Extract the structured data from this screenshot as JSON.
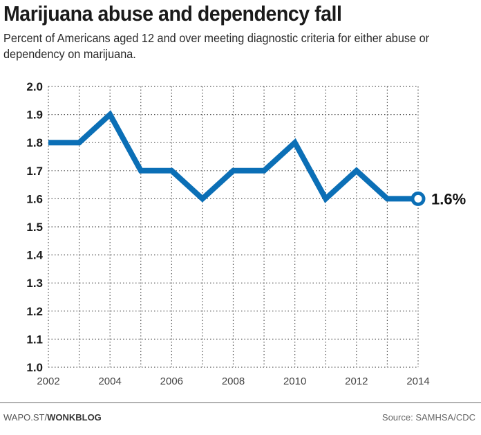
{
  "header": {
    "title": "Marijuana abuse and dependency fall",
    "subtitle": "Percent of Americans aged 12 and over meeting diagnostic criteria for either abuse or dependency on marijuana."
  },
  "footer": {
    "credit_prefix": "WAPO.ST/",
    "credit_bold": "WONKBLOG",
    "source": "Source: SAMHSA/CDC"
  },
  "colors": {
    "line": "#0b6fb6",
    "grid": "#555555",
    "text": "#1a1a1a"
  },
  "chart_data": {
    "type": "line",
    "title": "Marijuana abuse and dependency fall",
    "subtitle": "Percent of Americans aged 12 and over meeting diagnostic criteria for either abuse or dependency on marijuana.",
    "xlabel": "",
    "ylabel": "",
    "x": [
      2002,
      2003,
      2004,
      2005,
      2006,
      2007,
      2008,
      2009,
      2010,
      2011,
      2012,
      2013,
      2014
    ],
    "series": [
      {
        "name": "Abuse or dependency on marijuana (%)",
        "values": [
          1.8,
          1.8,
          1.9,
          1.7,
          1.7,
          1.6,
          1.7,
          1.7,
          1.8,
          1.6,
          1.7,
          1.6,
          1.6
        ]
      }
    ],
    "xlim": [
      2002,
      2014
    ],
    "ylim": [
      1.0,
      2.0
    ],
    "yticks": [
      "2.0",
      "1.9",
      "1.8",
      "1.7",
      "1.6",
      "1.5",
      "1.4",
      "1.3",
      "1.2",
      "1.1",
      "1.0"
    ],
    "ytick_values": [
      2.0,
      1.9,
      1.8,
      1.7,
      1.6,
      1.5,
      1.4,
      1.3,
      1.2,
      1.1,
      1.0
    ],
    "xticks": [
      "2002",
      "2004",
      "2006",
      "2008",
      "2010",
      "2012",
      "2014"
    ],
    "xtick_values": [
      2002,
      2004,
      2006,
      2008,
      2010,
      2012,
      2014
    ],
    "grid": true,
    "grid_style": "dotted",
    "end_annotation": "1.6%",
    "end_marker": "open-circle"
  }
}
